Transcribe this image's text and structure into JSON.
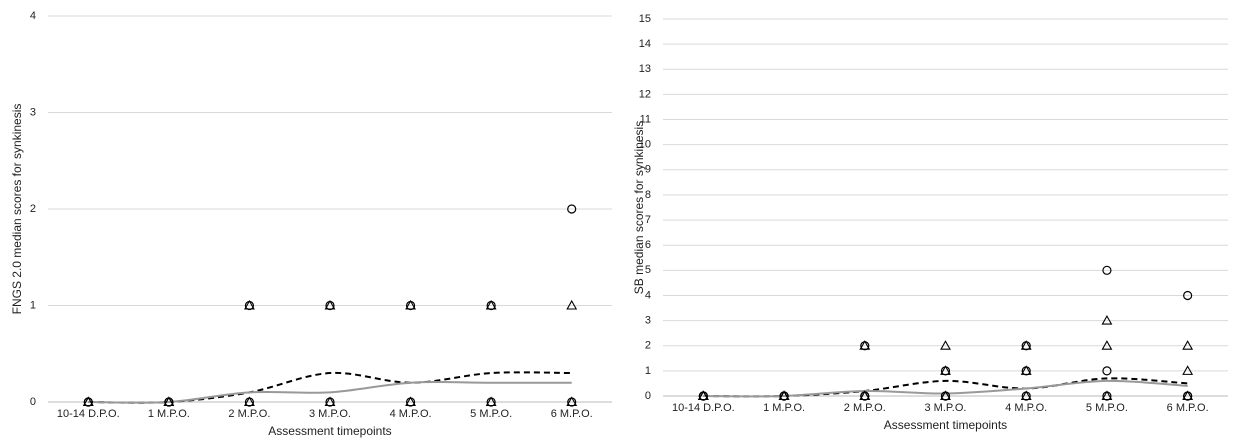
{
  "chart_data": [
    {
      "type": "line",
      "y_label": "FNGS 2.0 median scores for synkinesis",
      "x_label": "Assessment timepoints",
      "categories": [
        "10-14 D.P.O.",
        "1 M.P.O.",
        "2 M.P.O.",
        "3 M.P.O.",
        "4 M.P.O.",
        "5 M.P.O.",
        "6 M.P.O."
      ],
      "ylim": [
        0,
        4
      ],
      "yticks": [
        0,
        1,
        2,
        3,
        4
      ],
      "grid": true,
      "series": [
        {
          "marker": "circle",
          "color": "#000000",
          "values": [
            0,
            0,
            1,
            1,
            1,
            1,
            2
          ]
        },
        {
          "marker": "circle",
          "color": "#000000",
          "values": [
            0,
            0,
            0,
            0,
            0,
            0,
            0
          ]
        },
        {
          "marker": "triangle",
          "color": "#000000",
          "values": [
            0,
            0,
            1,
            1,
            1,
            1,
            1
          ]
        },
        {
          "marker": "triangle",
          "color": "#000000",
          "values": [
            0,
            0,
            0,
            0,
            0,
            0,
            0
          ]
        },
        {
          "line": "dashed",
          "color": "#000000",
          "values": [
            0,
            0,
            0.1,
            0.3,
            0.2,
            0.3,
            0.3
          ]
        },
        {
          "line": "solid",
          "color": "#999999",
          "values": [
            0,
            0,
            0.1,
            0.1,
            0.2,
            0.2,
            0.2
          ]
        }
      ]
    },
    {
      "type": "line",
      "y_label": "SB median scores for synkinesis",
      "x_label": "Assessment timepoints",
      "categories": [
        "10-14 D.P.O.",
        "1 M.P.O.",
        "2 M.P.O.",
        "3 M.P.O.",
        "4 M.P.O.",
        "5 M.P.O.",
        "6 M.P.O."
      ],
      "ylim": [
        0,
        15
      ],
      "yticks": [
        0,
        1,
        2,
        3,
        4,
        5,
        6,
        7,
        8,
        9,
        10,
        11,
        12,
        13,
        14,
        15
      ],
      "grid": true,
      "series": [
        {
          "marker": "circle",
          "color": "#000000",
          "values": [
            0,
            0,
            2,
            1,
            2,
            5,
            4
          ]
        },
        {
          "marker": "circle",
          "color": "#000000",
          "values": [
            0,
            0,
            0,
            0,
            1,
            1,
            0
          ]
        },
        {
          "marker": "circle",
          "color": "#000000",
          "values": [
            0,
            0,
            0,
            0,
            0,
            0,
            0
          ]
        },
        {
          "marker": "triangle",
          "color": "#000000",
          "values": [
            0,
            0,
            2,
            2,
            2,
            3,
            2
          ]
        },
        {
          "marker": "triangle",
          "color": "#000000",
          "values": [
            0,
            0,
            0,
            1,
            1,
            2,
            1
          ]
        },
        {
          "marker": "triangle",
          "color": "#000000",
          "values": [
            0,
            0,
            0,
            0,
            0,
            0,
            0
          ]
        },
        {
          "line": "dashed",
          "color": "#000000",
          "values": [
            0,
            0,
            0.2,
            0.6,
            0.3,
            0.7,
            0.5
          ]
        },
        {
          "line": "solid",
          "color": "#999999",
          "values": [
            0,
            0,
            0.2,
            0.1,
            0.3,
            0.6,
            0.4
          ]
        }
      ]
    }
  ]
}
